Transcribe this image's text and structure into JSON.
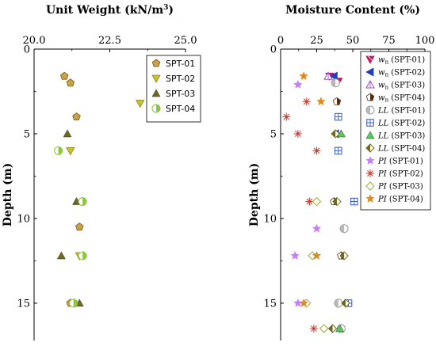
{
  "chart_data": [
    {
      "type": "scatter",
      "title": "Unit Weight (kN/m",
      "title_sup": "3",
      "title_end": ")",
      "ylabel": "Depth (m)",
      "x_ticks": [
        "20.0",
        "22.5",
        "25.0"
      ],
      "y_ticks": [
        "0",
        "5",
        "10",
        "15"
      ],
      "xlim": [
        20.0,
        25.0
      ],
      "ylim": [
        0,
        17.2
      ],
      "y_inverted": true,
      "legend_position": "top-right",
      "series": [
        {
          "name": "SPT-01",
          "marker": "pentagon",
          "color": "#c8a24a",
          "points": [
            [
              21.0,
              1.6
            ],
            [
              21.2,
              2.0
            ],
            [
              21.4,
              4.0
            ],
            [
              21.5,
              10.5
            ],
            [
              21.2,
              15.0
            ]
          ]
        },
        {
          "name": "SPT-02",
          "marker": "triangle-down",
          "color": "#c8c430",
          "points": [
            [
              23.5,
              3.2
            ],
            [
              21.2,
              6.0
            ],
            [
              21.5,
              12.2
            ]
          ]
        },
        {
          "name": "SPT-03",
          "marker": "triangle-up",
          "color": "#6b6b1a",
          "points": [
            [
              21.1,
              5.0
            ],
            [
              21.4,
              9.0
            ],
            [
              20.9,
              12.2
            ],
            [
              21.5,
              15.0
            ]
          ]
        },
        {
          "name": "SPT-04",
          "marker": "half-circle",
          "color": "#8dc63f",
          "points": [
            [
              20.8,
              6.0
            ],
            [
              21.6,
              9.0
            ],
            [
              21.6,
              12.2
            ],
            [
              21.3,
              15.0
            ]
          ]
        }
      ]
    },
    {
      "type": "scatter",
      "title": "Moisture Content (%)",
      "ylabel": "Depth (m)",
      "x_ticks": [
        "0",
        "25",
        "50",
        "75",
        "100"
      ],
      "y_ticks": [
        "0",
        "5",
        "10",
        "15"
      ],
      "xlim": [
        0,
        100
      ],
      "ylim": [
        0,
        17.2
      ],
      "y_inverted": true,
      "legend_position": "top-right",
      "series": [
        {
          "name_main": "w",
          "name_sub": "n",
          "name_site": "(SPT-01)",
          "marker": "triangle-down-x",
          "color": "#c2185b",
          "points": [
            [
              34,
              1.6
            ],
            [
              40,
              1.9
            ]
          ]
        },
        {
          "name_main": "w",
          "name_sub": "n",
          "name_site": "(SPT-02)",
          "marker": "triangle-left",
          "color": "#1f3fbf",
          "points": [
            [
              37,
              1.6
            ],
            [
              38,
              5.0
            ]
          ]
        },
        {
          "name_main": "w",
          "name_sub": "n",
          "name_site": "(SPT-03)",
          "marker": "triangle-up-open",
          "color": "#9c4dcc",
          "points": [
            [
              33,
              1.6
            ]
          ]
        },
        {
          "name_main": "w",
          "name_sub": "n",
          "name_site": "(SPT-04)",
          "marker": "pentagon-half",
          "color": "#5a2d0c",
          "points": [
            [
              39,
              3.1
            ],
            [
              37,
              9.0
            ],
            [
              42,
              12.2
            ]
          ]
        },
        {
          "name_main": "LL",
          "name_sub": "",
          "name_site": "(SPT-01)",
          "marker": "circle-half",
          "color": "#b8b8b8",
          "points": [
            [
              38,
              2.0
            ],
            [
              40,
              15.0
            ],
            [
              44,
              10.6
            ],
            [
              42,
              16.5
            ]
          ]
        },
        {
          "name_main": "LL",
          "name_sub": "",
          "name_site": "(SPT-02)",
          "marker": "square-plus",
          "color": "#3355cc",
          "points": [
            [
              40,
              4.0
            ],
            [
              40,
              6.0
            ],
            [
              51,
              9.0
            ],
            [
              47,
              15.0
            ]
          ]
        },
        {
          "name_main": "LL",
          "name_sub": "",
          "name_site": "(SPT-03)",
          "marker": "triangle-up",
          "color": "#55cc55",
          "points": [
            [
              42,
              5.0
            ],
            [
              41,
              16.5
            ]
          ]
        },
        {
          "name_main": "LL",
          "name_sub": "",
          "name_site": "(SPT-04)",
          "marker": "diamond-half",
          "color": "#6b6b1a",
          "points": [
            [
              38,
              5.0
            ],
            [
              39,
              9.0
            ],
            [
              44,
              12.2
            ],
            [
              45,
              15.0
            ],
            [
              36,
              16.5
            ]
          ]
        },
        {
          "name_main": "PI",
          "name_sub": "",
          "name_site": "(SPT-01)",
          "marker": "star",
          "color": "#c77dff",
          "points": [
            [
              12,
              2.1
            ],
            [
              25,
              10.6
            ],
            [
              10,
              12.2
            ],
            [
              12,
              15.0
            ]
          ]
        },
        {
          "name_main": "PI",
          "name_sub": "",
          "name_site": "(SPT-02)",
          "marker": "asterisk",
          "color": "#c0392b",
          "points": [
            [
              18,
              3.1
            ],
            [
              4,
              4.0
            ],
            [
              12,
              5.0
            ],
            [
              25,
              6.0
            ],
            [
              20,
              9.0
            ],
            [
              23,
              16.5
            ]
          ]
        },
        {
          "name_main": "PI",
          "name_sub": "",
          "name_site": "(SPT-03)",
          "marker": "diamond-open",
          "color": "#9aab3a",
          "points": [
            [
              25,
              9.0
            ],
            [
              22,
              12.2
            ],
            [
              18,
              15.0
            ],
            [
              30,
              16.5
            ]
          ]
        },
        {
          "name_main": "PI",
          "name_sub": "",
          "name_site": "(SPT-04)",
          "marker": "star",
          "color": "#e08a1e",
          "points": [
            [
              16,
              1.6
            ],
            [
              28,
              3.1
            ],
            [
              25,
              12.2
            ],
            [
              16,
              15.0
            ]
          ]
        }
      ]
    }
  ]
}
